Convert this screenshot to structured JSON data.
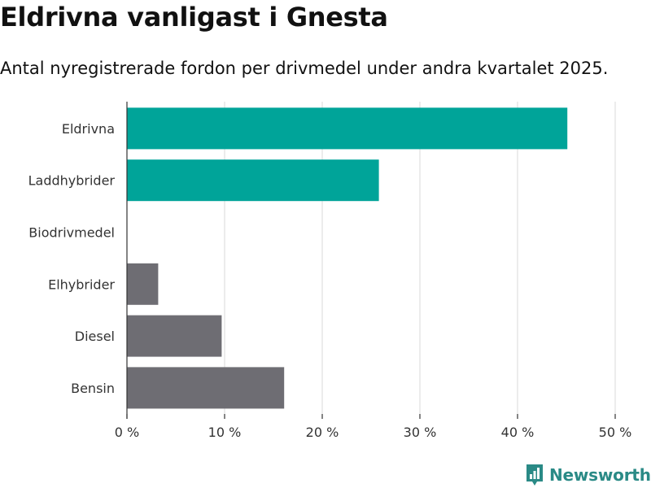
{
  "title": "Eldrivna vanligast i Gnesta",
  "subtitle": "Antal nyregistrerade fordon per drivmedel under andra kvartalet 2025.",
  "brand": "Newsworthy",
  "colors": {
    "highlight": "#00a499",
    "other": "#6e6d73",
    "brand": "#2a8a86",
    "grid": "#d9d9d9",
    "axis": "#333333"
  },
  "chart_data": {
    "type": "bar",
    "orientation": "horizontal",
    "categories": [
      "Eldrivna",
      "Laddhybrider",
      "Biodrivmedel",
      "Elhybrider",
      "Diesel",
      "Bensin"
    ],
    "values": [
      45.1,
      25.8,
      0,
      3.2,
      9.7,
      16.1
    ],
    "highlight": [
      true,
      true,
      false,
      false,
      false,
      false
    ],
    "xlim": [
      0,
      50
    ],
    "xticks": [
      0,
      10,
      20,
      30,
      40,
      50
    ],
    "xtick_labels": [
      "0 %",
      "10 %",
      "20 %",
      "30 %",
      "40 %",
      "50 %"
    ],
    "grid": true
  }
}
